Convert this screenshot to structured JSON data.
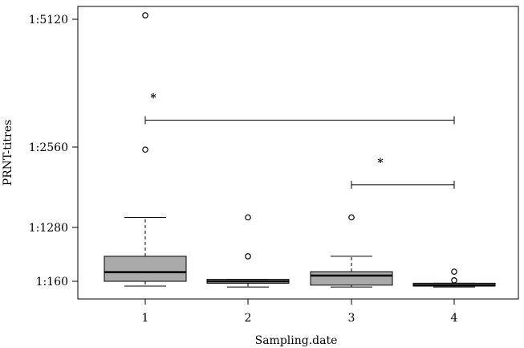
{
  "chart_data": {
    "type": "boxplot",
    "xlabel": "Sampling.date",
    "ylabel": "PRNT-titres",
    "categories": [
      "1",
      "2",
      "3",
      "4"
    ],
    "y_tick_labels": [
      "1:160",
      "1:1280",
      "1:2560",
      "1:5120"
    ],
    "y_tick_values": [
      160,
      1280,
      2560,
      5120
    ],
    "y_axis_range": [
      -100,
      5500
    ],
    "box_color": "#aaaaaa",
    "boxes": [
      {
        "category": "1",
        "whisker_low": 60,
        "q1": 160,
        "median": 350,
        "q3": 680,
        "whisker_high": 1440,
        "outliers": [
          5200,
          2520
        ]
      },
      {
        "category": "2",
        "whisker_low": 40,
        "q1": 120,
        "median": 160,
        "q3": 200,
        "whisker_high": 200,
        "outliers": [
          1440,
          680
        ]
      },
      {
        "category": "3",
        "whisker_low": 40,
        "q1": 80,
        "median": 280,
        "q3": 360,
        "whisker_high": 680,
        "outliers": [
          1440
        ]
      },
      {
        "category": "4",
        "whisker_low": 40,
        "q1": 60,
        "median": 80,
        "q3": 120,
        "whisker_high": 120,
        "outliers": [
          360,
          180
        ]
      }
    ],
    "significance": [
      {
        "from": "1",
        "to": "4",
        "marker": "*",
        "y": 3100
      },
      {
        "from": "3",
        "to": "4",
        "marker": "*",
        "y": 1960
      }
    ]
  }
}
